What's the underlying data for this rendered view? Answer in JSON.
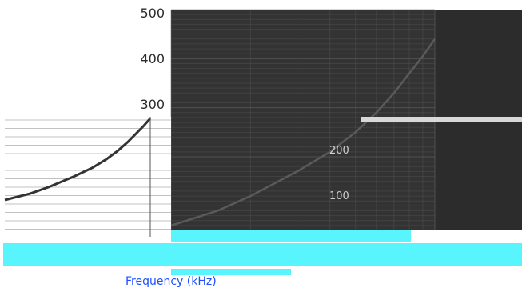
{
  "chart_data": {
    "type": "line",
    "title": "",
    "xlabel": "Frequency (kHz)",
    "ylabel": "",
    "x_scale": "log",
    "xlim": [
      100,
      1000
    ],
    "ylim": [
      50,
      500
    ],
    "y_ticks": [
      300,
      400,
      500
    ],
    "inset_y_ticks": [
      100,
      200
    ],
    "grid": true,
    "series": [
      {
        "x": [
          100,
          150,
          200,
          300,
          400,
          500,
          600,
          700,
          800,
          900,
          1000
        ],
        "y": [
          60,
          90,
          120,
          170,
          210,
          250,
          290,
          330,
          370,
          405,
          440
        ]
      }
    ]
  },
  "colors": {
    "background": "#ffffff",
    "plot_area": "#333333",
    "right_band": "#2c2c2c",
    "line": "#5a5a5a",
    "inset_line": "#333333",
    "cyan": "#58f5ff",
    "blue_text": "#1f4fff"
  },
  "labels": {
    "y_tick_300": "300",
    "y_tick_400": "400",
    "y_tick_500": "500",
    "inset_tick_100": "100",
    "inset_tick_200": "200",
    "x_axis_title": "Frequency (kHz)"
  }
}
